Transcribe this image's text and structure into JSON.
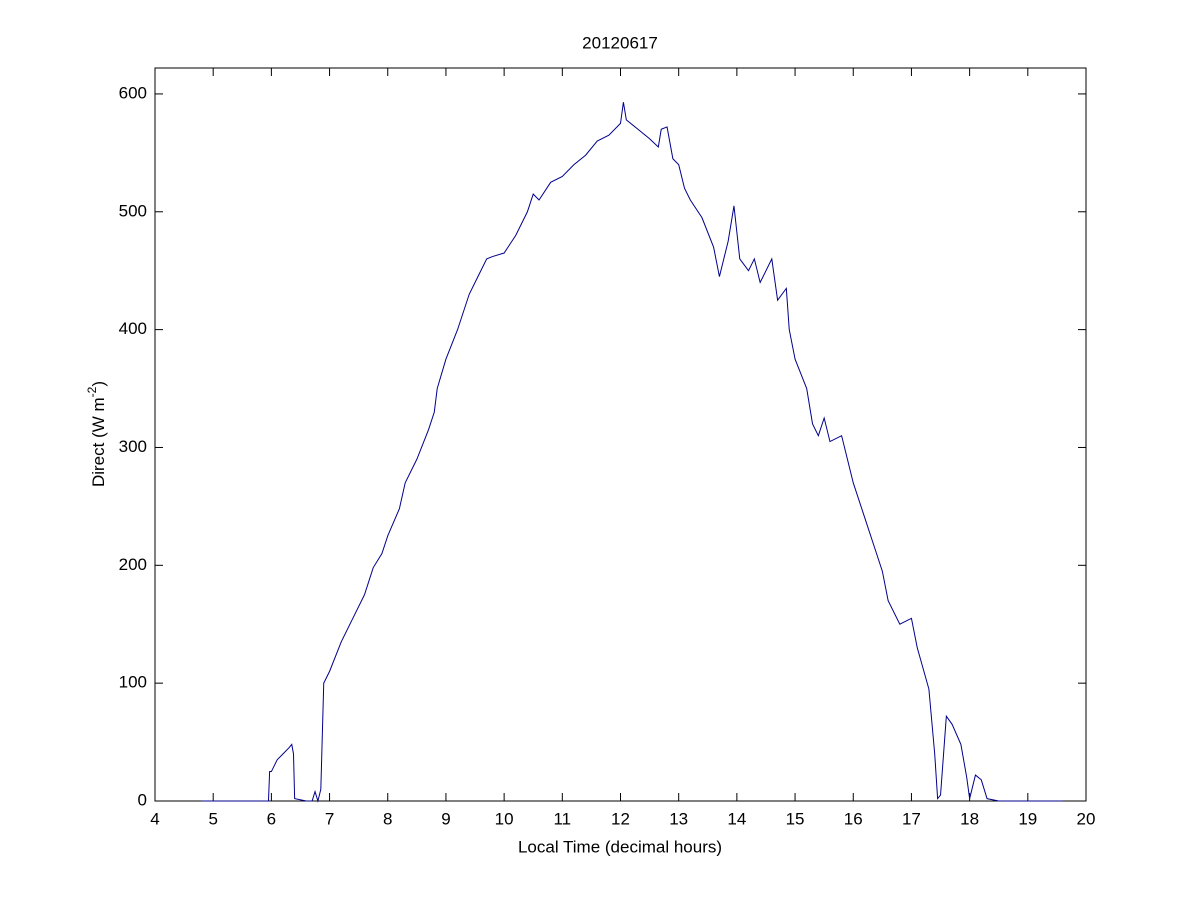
{
  "chart_data": {
    "type": "line",
    "title": "20120617",
    "xlabel": "Local Time (decimal hours)",
    "ylabel": [
      "Direct (W m",
      "-2",
      ")"
    ],
    "xlim": [
      4,
      20
    ],
    "ylim": [
      0,
      622
    ],
    "xticks": [
      4,
      5,
      6,
      7,
      8,
      9,
      10,
      11,
      12,
      13,
      14,
      15,
      16,
      17,
      18,
      19,
      20
    ],
    "yticks": [
      0,
      100,
      200,
      300,
      400,
      500,
      600
    ],
    "grid": false,
    "series": [
      {
        "name": "Direct",
        "color": "#00008b",
        "x": [
          4.8,
          5.5,
          5.95,
          5.97,
          6.0,
          6.1,
          6.2,
          6.3,
          6.35,
          6.38,
          6.4,
          6.6,
          6.7,
          6.75,
          6.8,
          6.85,
          6.9,
          7.0,
          7.2,
          7.4,
          7.6,
          7.75,
          7.9,
          8.0,
          8.2,
          8.3,
          8.5,
          8.7,
          8.8,
          8.85,
          9.0,
          9.2,
          9.4,
          9.5,
          9.7,
          9.8,
          10.0,
          10.2,
          10.4,
          10.5,
          10.6,
          10.8,
          11.0,
          11.2,
          11.4,
          11.6,
          11.8,
          12.0,
          12.05,
          12.1,
          12.3,
          12.5,
          12.65,
          12.7,
          12.8,
          12.9,
          13.0,
          13.1,
          13.2,
          13.4,
          13.6,
          13.7,
          13.85,
          13.95,
          14.05,
          14.2,
          14.3,
          14.4,
          14.6,
          14.7,
          14.85,
          14.9,
          15.0,
          15.2,
          15.3,
          15.4,
          15.5,
          15.6,
          15.8,
          16.0,
          16.2,
          16.4,
          16.5,
          16.6,
          16.8,
          17.0,
          17.1,
          17.3,
          17.4,
          17.45,
          17.5,
          17.6,
          17.7,
          17.85,
          17.95,
          18.0,
          18.1,
          18.2,
          18.3,
          18.5,
          19.6
        ],
        "values": [
          0,
          0,
          0,
          25,
          25,
          35,
          40,
          45,
          48,
          40,
          2,
          0,
          0,
          8,
          0,
          10,
          100,
          110,
          135,
          155,
          175,
          198,
          210,
          225,
          248,
          270,
          290,
          315,
          330,
          350,
          375,
          400,
          430,
          440,
          460,
          462,
          465,
          480,
          500,
          515,
          510,
          525,
          530,
          540,
          548,
          560,
          565,
          575,
          593,
          578,
          570,
          562,
          555,
          570,
          572,
          545,
          540,
          520,
          510,
          495,
          470,
          445,
          475,
          505,
          460,
          450,
          460,
          440,
          460,
          425,
          435,
          400,
          375,
          350,
          320,
          310,
          325,
          305,
          310,
          270,
          240,
          210,
          195,
          170,
          150,
          155,
          130,
          95,
          40,
          2,
          5,
          72,
          65,
          48,
          20,
          2,
          22,
          18,
          2,
          0,
          0
        ]
      }
    ]
  }
}
